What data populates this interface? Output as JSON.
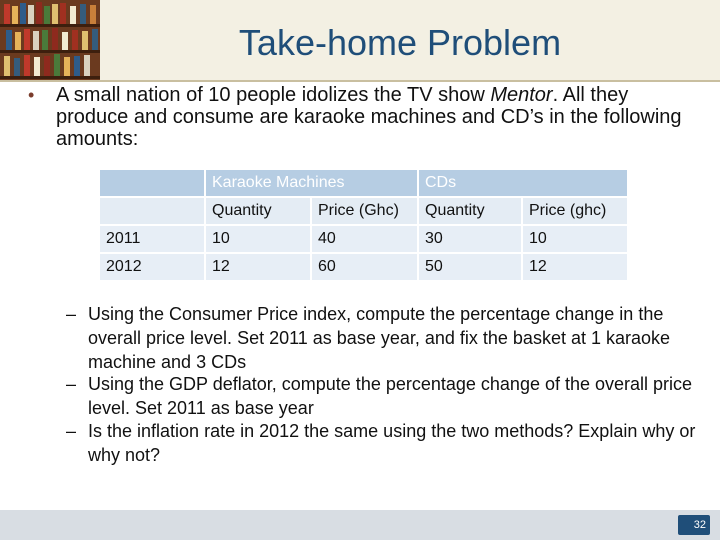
{
  "slide": {
    "title": "Take-home Problem",
    "bullet": "A small nation of 10 people idolizes the TV show Mentor. All they produce and consume are karaoke machines and CD’s in the following amounts:",
    "table": {
      "group_headers": [
        "",
        "Karaoke Machines",
        "",
        "CDs",
        ""
      ],
      "sub_headers": [
        "",
        "Quantity",
        "Price (Ghc)",
        "Quantity",
        "Price (ghc)"
      ],
      "rows": [
        [
          "2011",
          "10",
          "40",
          "30",
          "10"
        ],
        [
          "2012",
          "12",
          "60",
          "50",
          "12"
        ]
      ]
    },
    "sub_bullets": [
      "Using the Consumer Price index, compute the percentage change in the overall price level. Set 2011 as base year, and fix the basket at 1 karaoke machine and 3 CDs",
      "Using the GDP deflator, compute the percentage change of the overall price level. Set 2011 as base year",
      "Is the inflation rate in 2012 the same using the two methods? Explain why or why not?"
    ],
    "page_number": "32"
  }
}
